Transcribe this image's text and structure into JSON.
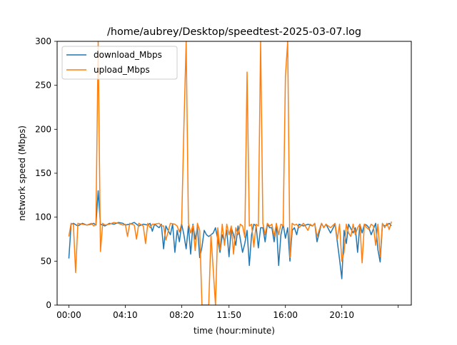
{
  "chart_data": {
    "type": "line",
    "title": "/home/aubrey/Desktop/speedtest-2025-03-07.log",
    "xlabel": "time (hour:minute)",
    "ylabel": "network speed (Mbps)",
    "xlim": [
      "23:08",
      "25:18"
    ],
    "ylim": [
      0,
      300
    ],
    "x_ticks": [
      "00:00",
      "04:10",
      "08:20",
      "11:50",
      "16:00",
      "20:10",
      ""
    ],
    "x_tick_values": [
      "00:00",
      "04:10",
      "08:20",
      "11:50",
      "16:00",
      "20:10",
      "24:20"
    ],
    "y_ticks": [
      0,
      50,
      100,
      150,
      200,
      250,
      300
    ],
    "legend_position": "upper-left",
    "grid": false,
    "series": [
      {
        "name": "download_Mbps",
        "color": "#1f77b4",
        "points": [
          [
            "00:00",
            53
          ],
          [
            "00:10",
            92
          ],
          [
            "00:20",
            93
          ],
          [
            "00:40",
            90
          ],
          [
            "01:00",
            93
          ],
          [
            "01:20",
            91
          ],
          [
            "01:40",
            92
          ],
          [
            "01:50",
            93
          ],
          [
            "02:00",
            91
          ],
          [
            "02:10",
            130
          ],
          [
            "02:20",
            92
          ],
          [
            "02:40",
            90
          ],
          [
            "03:00",
            93
          ],
          [
            "03:20",
            92
          ],
          [
            "03:40",
            94
          ],
          [
            "04:00",
            93
          ],
          [
            "04:10",
            91
          ],
          [
            "04:30",
            92
          ],
          [
            "04:50",
            94
          ],
          [
            "05:10",
            90
          ],
          [
            "05:30",
            92
          ],
          [
            "05:50",
            91
          ],
          [
            "06:00",
            93
          ],
          [
            "06:10",
            84
          ],
          [
            "06:20",
            92
          ],
          [
            "06:40",
            88
          ],
          [
            "06:50",
            92
          ],
          [
            "07:00",
            64
          ],
          [
            "07:10",
            90
          ],
          [
            "07:30",
            80
          ],
          [
            "07:40",
            92
          ],
          [
            "07:50",
            60
          ],
          [
            "08:00",
            85
          ],
          [
            "08:10",
            72
          ],
          [
            "08:20",
            92
          ],
          [
            "08:30",
            80
          ],
          [
            "08:40",
            64
          ],
          [
            "08:50",
            90
          ],
          [
            "09:00",
            58
          ],
          [
            "09:10",
            92
          ],
          [
            "09:20",
            75
          ],
          [
            "09:30",
            89
          ],
          [
            "09:40",
            54
          ],
          [
            "09:50",
            66
          ],
          [
            "10:00",
            85
          ],
          [
            "10:10",
            80
          ],
          [
            "10:20",
            78
          ],
          [
            "10:30",
            80
          ],
          [
            "10:40",
            82
          ],
          [
            "10:50",
            88
          ],
          [
            "11:00",
            75
          ],
          [
            "11:10",
            60
          ],
          [
            "11:20",
            80
          ],
          [
            "11:30",
            72
          ],
          [
            "11:40",
            85
          ],
          [
            "11:50",
            55
          ],
          [
            "12:00",
            88
          ],
          [
            "12:10",
            80
          ],
          [
            "12:20",
            68
          ],
          [
            "12:30",
            90
          ],
          [
            "12:40",
            75
          ],
          [
            "12:50",
            60
          ],
          [
            "13:00",
            70
          ],
          [
            "13:10",
            85
          ],
          [
            "13:20",
            45
          ],
          [
            "13:30",
            80
          ],
          [
            "13:40",
            92
          ],
          [
            "13:50",
            90
          ],
          [
            "14:00",
            65
          ],
          [
            "14:10",
            88
          ],
          [
            "14:20",
            88
          ],
          [
            "14:30",
            72
          ],
          [
            "14:40",
            92
          ],
          [
            "14:50",
            88
          ],
          [
            "15:00",
            88
          ],
          [
            "15:10",
            72
          ],
          [
            "15:20",
            92
          ],
          [
            "15:30",
            45
          ],
          [
            "15:40",
            80
          ],
          [
            "15:50",
            92
          ],
          [
            "16:00",
            76
          ],
          [
            "16:10",
            88
          ],
          [
            "16:20",
            50
          ],
          [
            "16:30",
            85
          ],
          [
            "16:40",
            88
          ],
          [
            "16:50",
            80
          ],
          [
            "17:00",
            92
          ],
          [
            "17:20",
            90
          ],
          [
            "17:40",
            92
          ],
          [
            "18:00",
            90
          ],
          [
            "18:10",
            93
          ],
          [
            "18:20",
            72
          ],
          [
            "18:40",
            93
          ],
          [
            "18:50",
            88
          ],
          [
            "19:00",
            92
          ],
          [
            "19:20",
            82
          ],
          [
            "19:40",
            92
          ],
          [
            "20:00",
            52
          ],
          [
            "20:10",
            30
          ],
          [
            "20:20",
            85
          ],
          [
            "20:30",
            70
          ],
          [
            "20:40",
            92
          ],
          [
            "21:00",
            82
          ],
          [
            "21:10",
            88
          ],
          [
            "21:20",
            60
          ],
          [
            "21:30",
            92
          ],
          [
            "21:40",
            82
          ],
          [
            "21:50",
            92
          ],
          [
            "22:00",
            91
          ],
          [
            "22:10",
            88
          ],
          [
            "22:20",
            80
          ],
          [
            "22:40",
            93
          ],
          [
            "22:50",
            63
          ],
          [
            "23:00",
            49
          ],
          [
            "23:10",
            92
          ],
          [
            "23:20",
            90
          ],
          [
            "23:30",
            91
          ],
          [
            "23:40",
            93
          ],
          [
            "23:50",
            90
          ]
        ]
      },
      {
        "name": "upload_Mbps",
        "color": "#ff7f0e",
        "points": [
          [
            "00:00",
            78
          ],
          [
            "00:10",
            93
          ],
          [
            "00:20",
            92
          ],
          [
            "00:30",
            37
          ],
          [
            "00:40",
            93
          ],
          [
            "01:00",
            92
          ],
          [
            "01:20",
            91
          ],
          [
            "01:40",
            93
          ],
          [
            "01:50",
            90
          ],
          [
            "02:00",
            92
          ],
          [
            "02:10",
            300
          ],
          [
            "02:20",
            61
          ],
          [
            "02:30",
            93
          ],
          [
            "02:40",
            91
          ],
          [
            "03:00",
            92
          ],
          [
            "03:20",
            94
          ],
          [
            "03:40",
            93
          ],
          [
            "04:00",
            91
          ],
          [
            "04:10",
            92
          ],
          [
            "04:20",
            78
          ],
          [
            "04:30",
            93
          ],
          [
            "04:50",
            91
          ],
          [
            "05:00",
            75
          ],
          [
            "05:10",
            93
          ],
          [
            "05:30",
            90
          ],
          [
            "05:40",
            70
          ],
          [
            "05:50",
            93
          ],
          [
            "06:00",
            88
          ],
          [
            "06:10",
            92
          ],
          [
            "06:20",
            92
          ],
          [
            "06:40",
            93
          ],
          [
            "06:50",
            90
          ],
          [
            "07:00",
            90
          ],
          [
            "07:10",
            74
          ],
          [
            "07:30",
            93
          ],
          [
            "07:50",
            92
          ],
          [
            "08:00",
            90
          ],
          [
            "08:10",
            83
          ],
          [
            "08:20",
            93
          ],
          [
            "08:30",
            203
          ],
          [
            "08:40",
            300
          ],
          [
            "08:50",
            93
          ],
          [
            "09:00",
            82
          ],
          [
            "09:10",
            91
          ],
          [
            "09:20",
            62
          ],
          [
            "09:30",
            93
          ],
          [
            "09:40",
            85
          ],
          [
            "09:50",
            0
          ],
          [
            "10:00",
            0
          ],
          [
            "10:20",
            0
          ],
          [
            "10:30",
            80
          ],
          [
            "10:40",
            40
          ],
          [
            "10:50",
            0
          ],
          [
            "11:00",
            88
          ],
          [
            "11:10",
            63
          ],
          [
            "11:20",
            92
          ],
          [
            "11:30",
            68
          ],
          [
            "11:40",
            92
          ],
          [
            "11:50",
            80
          ],
          [
            "12:00",
            90
          ],
          [
            "12:10",
            58
          ],
          [
            "12:20",
            88
          ],
          [
            "12:30",
            80
          ],
          [
            "12:40",
            92
          ],
          [
            "12:50",
            90
          ],
          [
            "13:00",
            77
          ],
          [
            "13:10",
            265
          ],
          [
            "13:20",
            90
          ],
          [
            "13:30",
            92
          ],
          [
            "13:40",
            66
          ],
          [
            "13:50",
            92
          ],
          [
            "14:00",
            90
          ],
          [
            "14:10",
            300
          ],
          [
            "14:20",
            93
          ],
          [
            "14:30",
            80
          ],
          [
            "14:40",
            93
          ],
          [
            "14:50",
            90
          ],
          [
            "15:00",
            92
          ],
          [
            "15:10",
            78
          ],
          [
            "15:20",
            93
          ],
          [
            "15:30",
            80
          ],
          [
            "15:40",
            92
          ],
          [
            "15:50",
            90
          ],
          [
            "16:00",
            260
          ],
          [
            "16:10",
            300
          ],
          [
            "16:20",
            54
          ],
          [
            "16:30",
            93
          ],
          [
            "16:40",
            91
          ],
          [
            "16:50",
            92
          ],
          [
            "17:00",
            88
          ],
          [
            "17:20",
            93
          ],
          [
            "17:40",
            85
          ],
          [
            "17:50",
            92
          ],
          [
            "18:00",
            90
          ],
          [
            "18:10",
            93
          ],
          [
            "18:20",
            78
          ],
          [
            "18:40",
            93
          ],
          [
            "18:50",
            88
          ],
          [
            "19:00",
            92
          ],
          [
            "19:20",
            88
          ],
          [
            "19:40",
            93
          ],
          [
            "19:50",
            75
          ],
          [
            "20:00",
            92
          ],
          [
            "20:10",
            50
          ],
          [
            "20:20",
            60
          ],
          [
            "20:30",
            92
          ],
          [
            "20:40",
            82
          ],
          [
            "20:50",
            78
          ],
          [
            "21:00",
            92
          ],
          [
            "21:10",
            80
          ],
          [
            "21:20",
            88
          ],
          [
            "21:30",
            92
          ],
          [
            "21:40",
            48
          ],
          [
            "21:50",
            92
          ],
          [
            "22:00",
            88
          ],
          [
            "22:10",
            86
          ],
          [
            "22:20",
            92
          ],
          [
            "22:30",
            90
          ],
          [
            "22:40",
            68
          ],
          [
            "22:50",
            92
          ],
          [
            "23:00",
            55
          ],
          [
            "23:10",
            93
          ],
          [
            "23:20",
            88
          ],
          [
            "23:30",
            93
          ],
          [
            "23:40",
            86
          ],
          [
            "23:50",
            95
          ]
        ]
      }
    ]
  }
}
